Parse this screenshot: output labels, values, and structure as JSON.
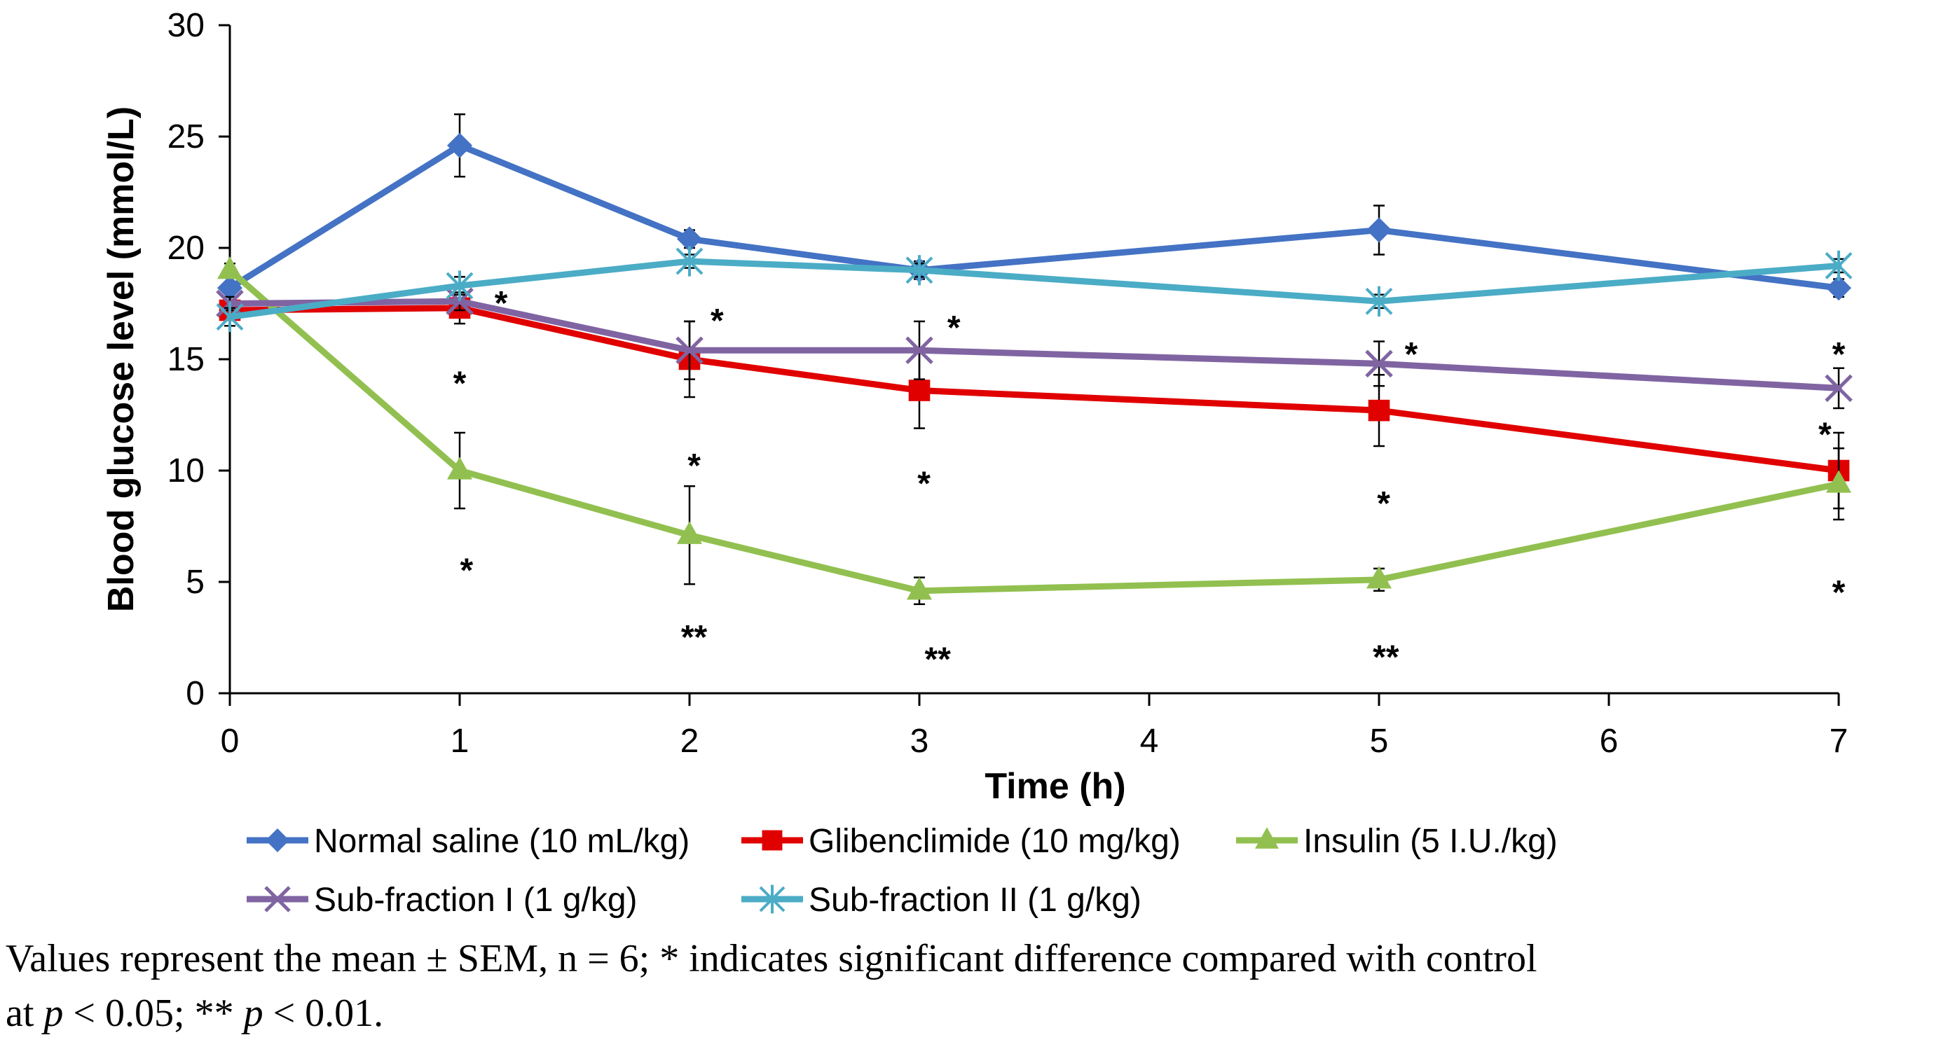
{
  "chart_data": {
    "type": "line",
    "title": "",
    "xlabel": "Time (h)",
    "ylabel": "Blood glucose level (mmol/L)",
    "xlim": [
      0,
      7
    ],
    "ylim": [
      0,
      30
    ],
    "x_ticks": [
      "0",
      "1",
      "2",
      "3",
      "4",
      "5",
      "6",
      "7"
    ],
    "y_ticks": [
      "0",
      "5",
      "10",
      "15",
      "20",
      "25",
      "30"
    ],
    "x": [
      0,
      1,
      2,
      3,
      5,
      7
    ],
    "grid": false,
    "legend_position": "bottom",
    "series": [
      {
        "name": "Normal saline (10 mL/kg)",
        "color": "#4472C4",
        "marker": "diamond",
        "values": [
          18.2,
          24.6,
          20.4,
          19.0,
          20.8,
          18.2
        ],
        "errors": [
          0.6,
          1.4,
          0.4,
          0.4,
          1.1,
          0.4
        ]
      },
      {
        "name": "Glibenclimide (10 mg/kg)",
        "color": "#E00000",
        "marker": "square",
        "values": [
          17.2,
          17.3,
          15.0,
          13.6,
          12.7,
          10.0
        ],
        "errors": [
          0.4,
          0.7,
          1.7,
          1.7,
          1.6,
          1.7
        ]
      },
      {
        "name": "Insulin (5 I.U./kg)",
        "color": "#92C050",
        "marker": "triangle",
        "values": [
          19.0,
          10.0,
          7.1,
          4.6,
          5.1,
          9.4
        ],
        "errors": [
          0.3,
          1.7,
          2.2,
          0.6,
          0.5,
          1.6
        ]
      },
      {
        "name": "Sub-fraction I (1 g/kg)",
        "color": "#8064A2",
        "marker": "x",
        "values": [
          17.5,
          17.6,
          15.4,
          15.4,
          14.8,
          13.7
        ],
        "errors": [
          0.3,
          0.4,
          1.3,
          1.3,
          1.0,
          0.9
        ]
      },
      {
        "name": "Sub-fraction II (1 g/kg)",
        "color": "#4BACC6",
        "marker": "asterisk",
        "values": [
          16.9,
          18.3,
          19.4,
          19.0,
          17.6,
          19.2
        ],
        "errors": [
          0.4,
          0.4,
          0.3,
          0.3,
          0.3,
          0.3
        ]
      }
    ],
    "annotations": [
      {
        "text": "*",
        "x": 1.18,
        "y": 17.9
      },
      {
        "text": "*",
        "x": 2.12,
        "y": 17.1
      },
      {
        "text": "*",
        "x": 3.15,
        "y": 16.8
      },
      {
        "text": "*",
        "x": 5.14,
        "y": 15.6
      },
      {
        "text": "*",
        "x": 7.0,
        "y": 15.6
      },
      {
        "text": "*",
        "x": 1.0,
        "y": 14.3
      },
      {
        "text": "*",
        "x": 2.02,
        "y": 10.6
      },
      {
        "text": "*",
        "x": 3.02,
        "y": 9.8
      },
      {
        "text": "*",
        "x": 5.02,
        "y": 8.9
      },
      {
        "text": "*",
        "x": 6.94,
        "y": 12.0
      },
      {
        "text": "*",
        "x": 7.0,
        "y": 4.9
      },
      {
        "text": "*",
        "x": 1.03,
        "y": 5.9
      },
      {
        "text": "**",
        "x": 2.02,
        "y": 2.9
      },
      {
        "text": "**",
        "x": 3.08,
        "y": 1.9
      },
      {
        "text": "**",
        "x": 5.03,
        "y": 2.0
      }
    ]
  },
  "caption": {
    "line1": "Values represent the mean ± SEM, n = 6; * indicates significant difference compared with control",
    "line2_a": "at ",
    "line2_p1": "p",
    "line2_b": " < 0.05; ** ",
    "line2_p2": "p",
    "line2_c": " < 0.01."
  }
}
